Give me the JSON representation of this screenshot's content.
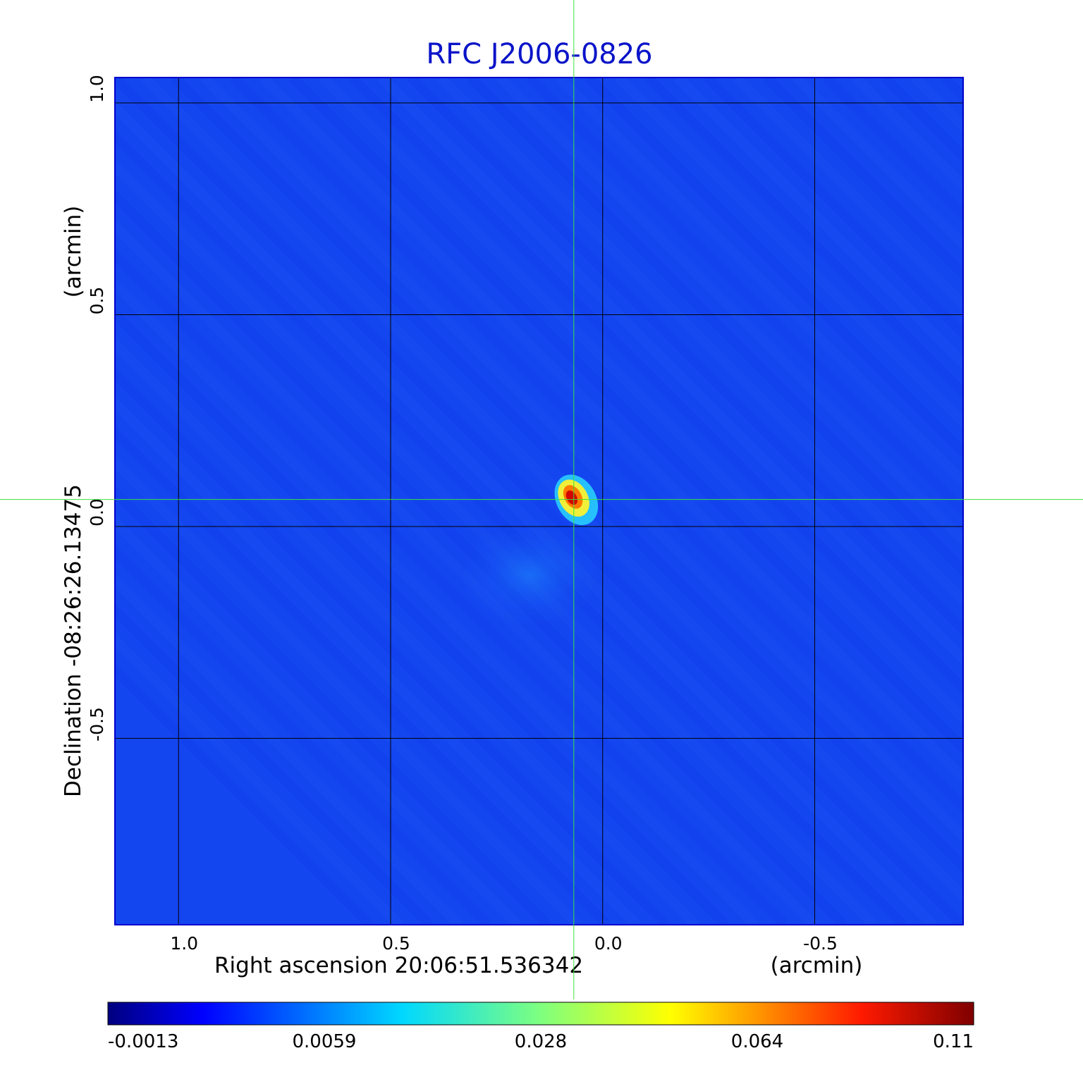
{
  "chart_data": {
    "type": "heatmap",
    "title": "RFC J2006-0826",
    "xlabel": "Right ascension  20:06:51.536342",
    "xunit": "(arcmin)",
    "ylabel": "Declination  -08:26:26.13475",
    "yunit": "(arcmin)",
    "xlim": [
      1.15,
      -0.85
    ],
    "ylim": [
      -0.94,
      1.06
    ],
    "xticks": [
      1.0,
      0.5,
      0.0,
      -0.5
    ],
    "xtick_labels": [
      "1.0",
      "0.5",
      "0.0",
      "-0.5"
    ],
    "yticks": [
      1.0,
      0.5,
      0.0,
      -0.5
    ],
    "ytick_labels": [
      "1.0",
      "0.5",
      "0.0",
      "-0.5"
    ],
    "grid": true,
    "crosshair": {
      "x": 0.068,
      "y": 0.064,
      "color": "#3ae23a"
    },
    "source_peak": {
      "x": 0.07,
      "y": 0.07
    },
    "colorbar": {
      "orientation": "horizontal",
      "colormap": "jet",
      "ticks": [
        -0.0013,
        0.0059,
        0.028,
        0.064,
        0.11
      ],
      "tick_labels": [
        "-0.0013",
        "0.0059",
        "0.028",
        "0.064",
        "0.11"
      ]
    },
    "background_color": "#1446f0"
  }
}
